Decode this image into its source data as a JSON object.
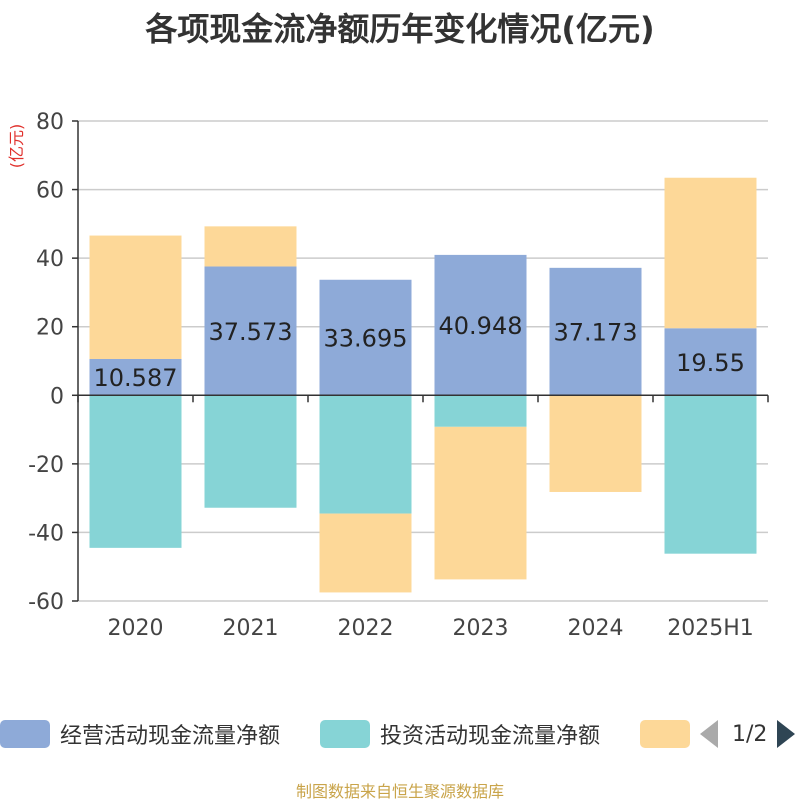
{
  "chart_data": {
    "type": "bar",
    "stacked": true,
    "title": "各项现金流净额历年变化情况(亿元)",
    "ylabel": "(亿元)",
    "categories": [
      "2020",
      "2021",
      "2022",
      "2023",
      "2024",
      "2025H1"
    ],
    "ylim": [
      -60,
      80
    ],
    "yticks": [
      -60,
      -40,
      -20,
      0,
      20,
      40,
      60,
      80
    ],
    "grid": true,
    "series": [
      {
        "name": "经营活动现金流量净额",
        "color": "#8eaad8",
        "values": [
          10.587,
          37.573,
          33.695,
          40.948,
          37.173,
          19.55
        ],
        "labels": [
          "10.587",
          "37.573",
          "33.695",
          "40.948",
          "37.173",
          "19.55"
        ]
      },
      {
        "name": "投资活动现金流量净额",
        "color": "#86d4d6",
        "values": [
          -44.5,
          -32.8,
          -34.5,
          -9.2,
          0,
          -46.2
        ]
      },
      {
        "name": "",
        "color": "#fdd898",
        "values": [
          36.0,
          11.7,
          -23.0,
          -44.5,
          -28.2,
          43.9
        ]
      }
    ],
    "legend_position": "bottom",
    "legend_page": "1/2"
  },
  "source": "制图数据来自恒生聚源数据库"
}
